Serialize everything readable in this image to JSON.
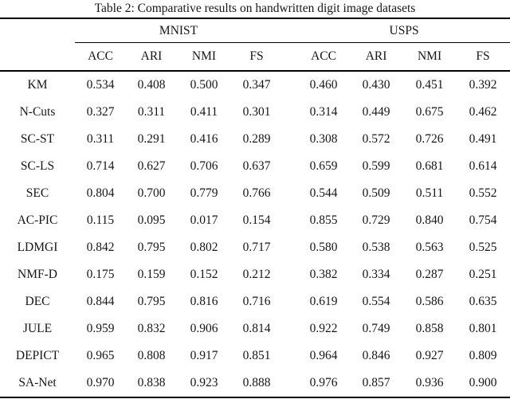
{
  "table": {
    "title": "Table 2: Comparative results on handwritten digit image datasets",
    "groups": [
      {
        "label": "MNIST"
      },
      {
        "label": "USPS"
      }
    ],
    "subheaders": [
      "ACC",
      "ARI",
      "NMI",
      "FS",
      "ACC",
      "ARI",
      "NMI",
      "FS"
    ],
    "rows": [
      {
        "method": "KM",
        "values": [
          "0.534",
          "0.408",
          "0.500",
          "0.347",
          "0.460",
          "0.430",
          "0.451",
          "0.392"
        ]
      },
      {
        "method": "N-Cuts",
        "values": [
          "0.327",
          "0.311",
          "0.411",
          "0.301",
          "0.314",
          "0.449",
          "0.675",
          "0.462"
        ]
      },
      {
        "method": "SC-ST",
        "values": [
          "0.311",
          "0.291",
          "0.416",
          "0.289",
          "0.308",
          "0.572",
          "0.726",
          "0.491"
        ]
      },
      {
        "method": "SC-LS",
        "values": [
          "0.714",
          "0.627",
          "0.706",
          "0.637",
          "0.659",
          "0.599",
          "0.681",
          "0.614"
        ]
      },
      {
        "method": "SEC",
        "values": [
          "0.804",
          "0.700",
          "0.779",
          "0.766",
          "0.544",
          "0.509",
          "0.511",
          "0.552"
        ]
      },
      {
        "method": "AC-PIC",
        "values": [
          "0.115",
          "0.095",
          "0.017",
          "0.154",
          "0.855",
          "0.729",
          "0.840",
          "0.754"
        ]
      },
      {
        "method": "LDMGI",
        "values": [
          "0.842",
          "0.795",
          "0.802",
          "0.717",
          "0.580",
          "0.538",
          "0.563",
          "0.525"
        ]
      },
      {
        "method": "NMF-D",
        "values": [
          "0.175",
          "0.159",
          "0.152",
          "0.212",
          "0.382",
          "0.334",
          "0.287",
          "0.251"
        ]
      },
      {
        "method": "DEC",
        "values": [
          "0.844",
          "0.795",
          "0.816",
          "0.716",
          "0.619",
          "0.554",
          "0.586",
          "0.635"
        ]
      },
      {
        "method": "JULE",
        "values": [
          "0.959",
          "0.832",
          "0.906",
          "0.814",
          "0.922",
          "0.749",
          "0.858",
          "0.801"
        ]
      },
      {
        "method": "DEPICT",
        "values": [
          "0.965",
          "0.808",
          "0.917",
          "0.851",
          "0.964",
          "0.846",
          "0.927",
          "0.809"
        ]
      },
      {
        "method": "SA-Net",
        "values": [
          "0.970",
          "0.838",
          "0.923",
          "0.888",
          "0.976",
          "0.857",
          "0.936",
          "0.900"
        ]
      }
    ]
  }
}
